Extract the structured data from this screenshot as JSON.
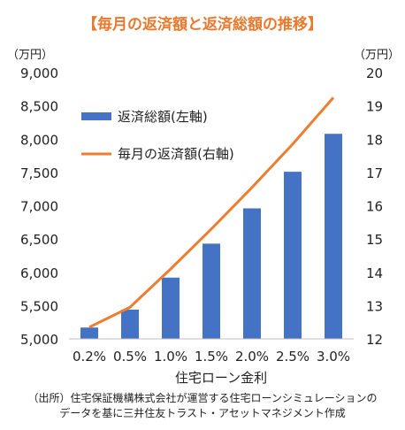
{
  "chart_data": {
    "type": "bar+line",
    "title": "【毎月の返済額と返済総額の推移】",
    "left_unit": "（万円）",
    "right_unit": "（万円）",
    "xlabel": "住宅ローン金利",
    "categories": [
      "0.2%",
      "0.5%",
      "1.0%",
      "1.5%",
      "2.0%",
      "2.5%",
      "3.0%"
    ],
    "left_axis": {
      "min": 5000,
      "max": 9000,
      "step": 500,
      "tick_labels": [
        "5,000",
        "5,500",
        "6,000",
        "6,500",
        "7,000",
        "7,500",
        "8,000",
        "8,500",
        "9,000"
      ]
    },
    "right_axis": {
      "min": 12,
      "max": 20,
      "step": 1,
      "tick_labels": [
        "12",
        "13",
        "14",
        "15",
        "16",
        "17",
        "18",
        "19",
        "20"
      ]
    },
    "series": [
      {
        "name": "返済総額(左軸)",
        "type": "bar",
        "axis": "left",
        "color": "#4472c4",
        "values": [
          5170,
          5440,
          5920,
          6430,
          6960,
          7510,
          8080
        ]
      },
      {
        "name": "毎月の返済額(右軸)",
        "type": "line",
        "axis": "right",
        "color": "#ed7d31",
        "values": [
          12.35,
          12.95,
          14.1,
          15.3,
          16.55,
          17.85,
          19.25
        ]
      }
    ],
    "legend_position": "top-left",
    "grid": false,
    "source": [
      "（出所）住宅保証機構株式会社が運営する住宅ローンシミュレーションの",
      "データを基に三井住友トラスト・アセットマネジメント作成"
    ]
  }
}
